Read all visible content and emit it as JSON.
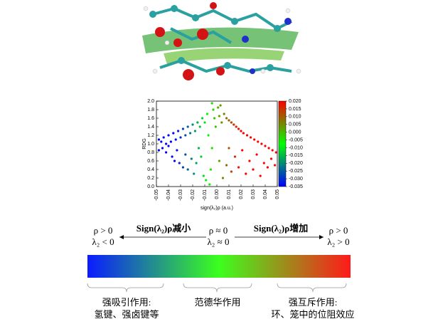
{
  "chart_data": {
    "type": "scatter",
    "xlabel": "sign(λ₂)ρ (a.u.)",
    "ylabel": "RDG",
    "xlim": [
      -0.05,
      0.05
    ],
    "xticks": [
      -0.05,
      -0.04,
      -0.03,
      -0.02,
      -0.01,
      {
        "value": 0,
        "label": "0.00"
      },
      0.01,
      0.02,
      0.03,
      0.04,
      0.05
    ],
    "ylim": [
      0,
      2
    ],
    "yticks": [
      {
        "value": 0,
        "label": "0.0"
      },
      0.2,
      0.4,
      0.6,
      0.8,
      {
        "value": 1,
        "label": "1.0"
      },
      1.2,
      1.4,
      1.6,
      1.8,
      {
        "value": 2,
        "label": "2.0"
      }
    ],
    "x": [
      -0.048,
      -0.046,
      -0.044,
      -0.042,
      -0.04,
      -0.038,
      -0.036,
      -0.034,
      -0.032,
      -0.03,
      -0.028,
      -0.026,
      -0.024,
      -0.022,
      -0.02,
      -0.018,
      -0.016,
      -0.014,
      -0.012,
      -0.01,
      -0.008,
      -0.048,
      -0.045,
      -0.042,
      -0.04,
      -0.037,
      -0.035,
      -0.033,
      -0.031,
      -0.028,
      -0.026,
      -0.024,
      -0.021,
      -0.019,
      -0.017,
      -0.015,
      -0.013,
      -0.011,
      -0.009,
      -0.007,
      -0.006,
      -0.004,
      -0.003,
      -0.002,
      -0.001,
      0.001,
      0.002,
      0.003,
      0.004,
      -0.004,
      0.002,
      -0.005,
      0.005,
      0.006,
      0.008,
      0.01,
      0.012,
      0.014,
      0.016,
      0.018,
      0.02,
      0.022,
      0.025,
      0.028,
      0.031,
      0.034,
      0.037,
      0.04,
      0.043,
      0.046,
      0.049,
      0.008,
      0.01,
      0.012,
      0.015,
      0.018,
      0.021,
      0.024,
      0.027,
      0.03,
      0.033,
      0.036,
      0.039,
      0.042,
      0.045,
      0.048
    ],
    "values": [
      1.1,
      1.05,
      1.15,
      1.0,
      1.2,
      1.05,
      1.25,
      1.1,
      1.3,
      1.15,
      1.35,
      1.2,
      1.4,
      1.25,
      1.45,
      1.3,
      1.5,
      1.4,
      1.6,
      1.5,
      1.7,
      0.85,
      0.9,
      0.8,
      0.95,
      0.7,
      0.6,
      0.85,
      0.55,
      0.45,
      0.75,
      0.4,
      0.65,
      0.3,
      0.55,
      0.9,
      0.7,
      0.25,
      0.15,
      1.2,
      0.05,
      1.95,
      1.8,
      1.6,
      1.4,
      1.85,
      1.65,
      1.9,
      1.5,
      0.9,
      0.6,
      0.4,
      0.2,
      1.7,
      1.6,
      1.55,
      1.5,
      1.45,
      1.4,
      1.35,
      1.3,
      1.25,
      1.2,
      1.15,
      1.1,
      1.05,
      1.0,
      0.95,
      0.9,
      0.85,
      0.8,
      0.5,
      0.9,
      0.35,
      0.7,
      0.45,
      0.85,
      0.3,
      0.6,
      0.4,
      0.75,
      0.25,
      0.55,
      0.45,
      0.65,
      0.5
    ],
    "colorbar": {
      "lim": [
        -0.035,
        0.02
      ],
      "colors": [
        "#0000ff",
        "#00ff00",
        "#ff0000"
      ],
      "ticks": [
        {
          "value": 0.02,
          "label": "0.020"
        },
        0.015,
        {
          "value": 0.01,
          "label": "0.010"
        },
        0.005,
        {
          "value": 0,
          "label": "0.000"
        },
        -0.005,
        {
          "value": -0.01,
          "label": "-0.010"
        },
        -0.015,
        {
          "value": -0.02,
          "label": "-0.020"
        },
        -0.025,
        {
          "value": -0.03,
          "label": "-0.030"
        },
        -0.035
      ]
    }
  },
  "scale_legend": {
    "left_condition": [
      "ρ > 0",
      "λ₂ < 0"
    ],
    "decrease": "Sign(λ₂)ρ减小",
    "center_condition": [
      "ρ ≈ 0",
      "λ₂ ≈ 0"
    ],
    "increase": "Sign(λ₂)ρ增加",
    "right_condition": [
      "ρ > 0",
      "λ₂ > 0"
    ],
    "groups": [
      {
        "title": "强吸引作用:",
        "detail": "氢键、强卤键等"
      },
      {
        "title": "范德华作用"
      },
      {
        "title": "强互斥作用:",
        "detail": "环、笼中的位阻效应"
      }
    ]
  }
}
